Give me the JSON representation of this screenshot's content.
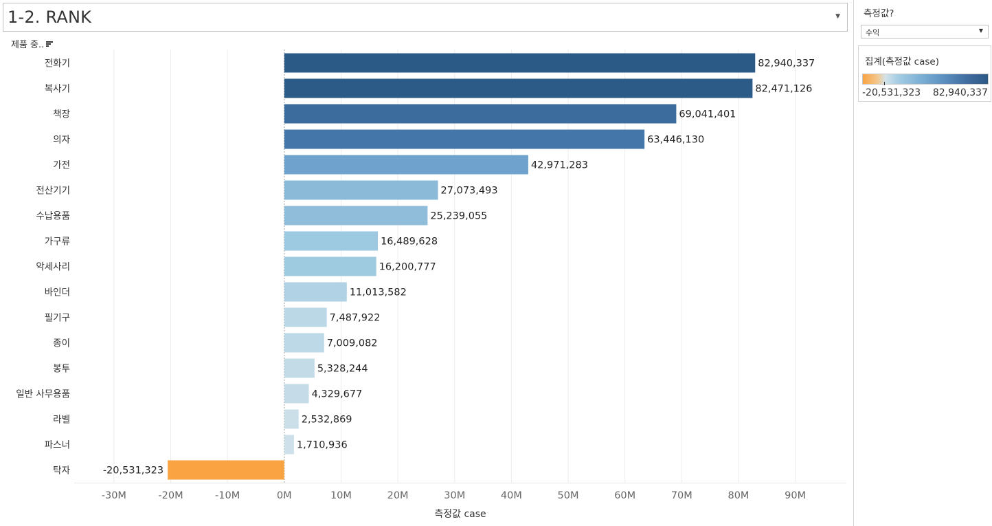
{
  "worksheet": {
    "title": "1-2. RANK",
    "dropdown_icon": "caret-down-icon"
  },
  "field_header": {
    "label": "제품 중..",
    "icon": "sort-descending-icon"
  },
  "chart_data": {
    "type": "bar",
    "orientation": "horizontal",
    "categories": [
      "전화기",
      "복사기",
      "책장",
      "의자",
      "가전",
      "전산기기",
      "수납용품",
      "가구류",
      "악세사리",
      "바인더",
      "필기구",
      "종이",
      "봉투",
      "일반 사무용품",
      "라벨",
      "파스너",
      "탁자"
    ],
    "values": [
      82940337,
      82471126,
      69041401,
      63446130,
      42971283,
      27073493,
      25239055,
      16489628,
      16200777,
      11013582,
      7487922,
      7009082,
      5328244,
      4329677,
      2532869,
      1710936,
      -20531323
    ],
    "value_labels": [
      "82,940,337",
      "82,471,126",
      "69,041,401",
      "63,446,130",
      "42,971,283",
      "27,073,493",
      "25,239,055",
      "16,489,628",
      "16,200,777",
      "11,013,582",
      "7,487,922",
      "7,009,082",
      "5,328,244",
      "4,329,677",
      "2,532,869",
      "1,710,936",
      "-20,531,323"
    ],
    "xlabel": "측정값 case",
    "ylabel": "제품 중..",
    "xlim": [
      -37000000,
      99000000
    ],
    "xticks": [
      -30000000,
      -20000000,
      -10000000,
      0,
      10000000,
      20000000,
      30000000,
      40000000,
      50000000,
      60000000,
      70000000,
      80000000,
      90000000
    ],
    "xtick_labels": [
      "-30M",
      "-20M",
      "-10M",
      "0M",
      "10M",
      "20M",
      "30M",
      "40M",
      "50M",
      "60M",
      "70M",
      "80M",
      "90M"
    ],
    "grid": true,
    "color_scale": {
      "min": -20531323,
      "max": 82940337,
      "neg_color": "#f9a343",
      "mid_color": "#d3e3ea",
      "pos_color": "#2c5a86"
    }
  },
  "parameter": {
    "title": "측정값?",
    "value": "수익",
    "dropdown_icon": "caret-down-icon"
  },
  "legend": {
    "title": "집계(측정값 case)",
    "min_label": "-20,531,323",
    "max_label": "82,940,337"
  }
}
